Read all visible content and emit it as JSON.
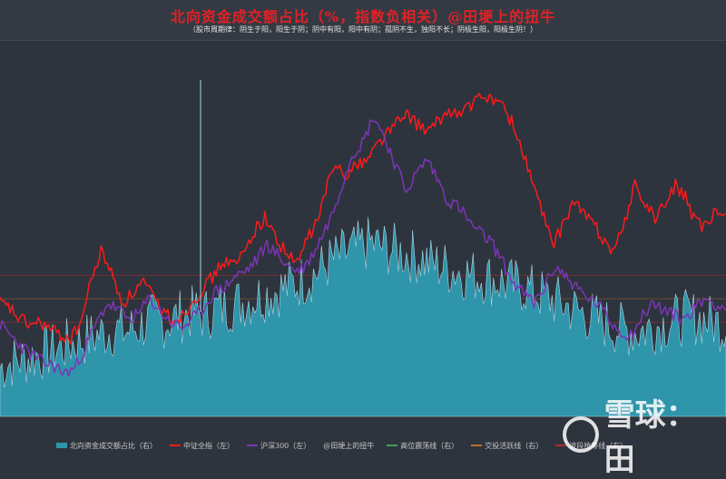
{
  "title": "北向资金成交额占比（%，指数负相关）@田埂上的扭牛",
  "subtitle": "（股市周期律：阴生于阳，阳生于阴；阴中有阳，阳中有阴；孤阴不生，独阳不长；阴极生阳，阳极生阴！）",
  "watermark_text": "雪球：田",
  "chart_data": {
    "type": "line",
    "n_points": 360,
    "series": [
      {
        "name": "北向资金成交额占比（右）",
        "kind": "area",
        "color": "#2f95ab",
        "values": [
          5.2,
          5.8,
          6.1,
          6.5,
          7.0,
          7.4,
          7.9,
          8.3,
          8.8,
          9.2,
          9.0,
          9.6,
          10.2,
          10.0,
          10.6,
          11.0,
          10.8,
          11.4,
          11.8,
          12.1,
          12.6,
          13.0,
          13.5,
          14.0,
          14.6,
          15.4,
          16.5,
          17.2,
          17.8,
          18.4,
          18.0,
          17.6,
          17.2,
          16.8,
          16.2,
          15.8,
          15.4,
          15.0,
          14.8,
          14.4,
          14.0,
          13.8,
          13.2,
          12.6,
          12.0,
          11.4,
          10.8,
          10.2,
          9.6,
          9.2,
          9.0,
          9.4,
          9.8,
          10.2,
          10.6,
          10.4,
          10.0,
          9.6
        ]
      },
      {
        "name": "中证全指（左）",
        "kind": "line",
        "color": "#ff1a1a",
        "values": [
          5100,
          5000,
          4800,
          4700,
          4750,
          4600,
          4500,
          4450,
          4800,
          5600,
          6100,
          5600,
          5100,
          5300,
          5500,
          5200,
          4950,
          4800,
          4900,
          5200,
          5400,
          5650,
          5900,
          5800,
          6100,
          6500,
          6700,
          6300,
          6050,
          5800,
          6300,
          6600,
          7300,
          7700,
          7500,
          7700,
          7800,
          8100,
          8300,
          8500,
          8600,
          8400,
          8300,
          8500,
          8700,
          8600,
          8800,
          8900,
          8950,
          8800,
          8500,
          8000,
          7400,
          6800,
          6200,
          6500,
          7000,
          6800,
          6600,
          6300,
          6100,
          6500,
          7300,
          7000,
          6700,
          6900,
          7300,
          7100,
          6600,
          6500,
          6800,
          6700
        ]
      },
      {
        "name": "沪深300（左）",
        "kind": "line",
        "color": "#7b35b8",
        "values": [
          4700,
          4500,
          4300,
          4150,
          4000,
          3950,
          3800,
          3900,
          4300,
          4700,
          5100,
          5000,
          4800,
          4900,
          5200,
          4950,
          4750,
          4650,
          4800,
          5000,
          5300,
          5400,
          5600,
          5700,
          5900,
          6200,
          6000,
          5800,
          5700,
          5900,
          6300,
          6700,
          7300,
          7900,
          8100,
          8600,
          8200,
          7700,
          7200,
          7500,
          7800,
          7400,
          7000,
          6900,
          6600,
          6400,
          6250,
          5900,
          5500,
          5300,
          5100,
          5400,
          5800,
          5600,
          5400,
          5200,
          5100,
          4800,
          4600,
          4500,
          4800,
          5100,
          5000,
          4900,
          4800,
          5000,
          5200,
          5100,
          5000
        ]
      }
    ],
    "reference_lines": [
      {
        "name": "高位震荡线（右）",
        "value": 15.0,
        "color": "#b52a2a"
      },
      {
        "name": "交投活跃线（右）",
        "value": 12.5,
        "color": "#8a5a2a"
      },
      {
        "name": "波段抢筹线（右）",
        "value": 10.0,
        "color": "#a03030"
      }
    ],
    "legend_items": [
      {
        "label": "北向资金成交额占比（右）",
        "kind": "area",
        "color": "#2f95ab"
      },
      {
        "label": "中证全指（左）",
        "kind": "line",
        "color": "#ff1a1a"
      },
      {
        "label": "沪深300（左）",
        "kind": "line",
        "color": "#7b35b8"
      },
      {
        "label": "@田埂上的扭牛",
        "kind": "none",
        "color": "#2e343d"
      },
      {
        "label": "高位震荡线（右）",
        "kind": "line",
        "color": "#3aa05a"
      },
      {
        "label": "交投活跃线（右）",
        "kind": "line",
        "color": "#c07020"
      },
      {
        "label": "波段抢筹线（右）",
        "kind": "line",
        "color": "#b52a2a"
      }
    ],
    "legend_position": "bottom",
    "grid": false
  }
}
